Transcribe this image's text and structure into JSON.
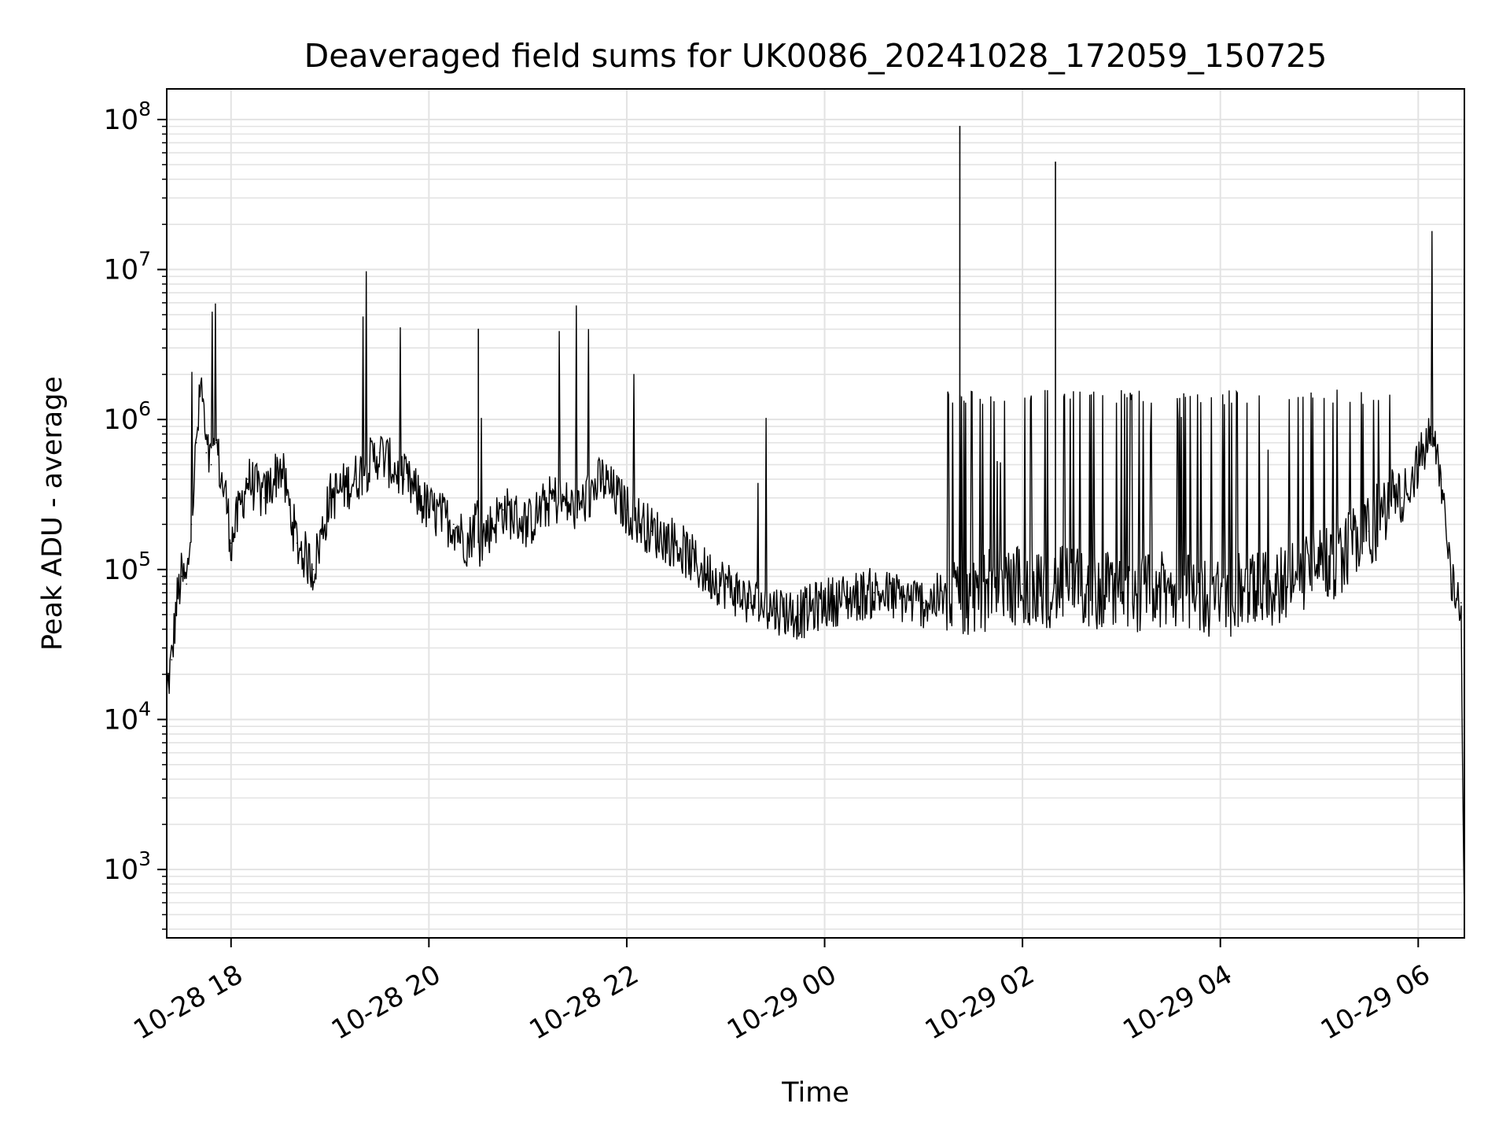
{
  "chart_data": {
    "type": "line",
    "title": "Deaveraged field sums for UK0086_20241028_172059_150725",
    "xlabel": "Time",
    "ylabel": "Peak ADU - average",
    "yscale": "log",
    "ylim": [
      350,
      160000000
    ],
    "xlim": [
      "2024-10-28 17:21",
      "2024-10-29 06:28"
    ],
    "grid": "on (major and minor, both axes)",
    "line_color": "#000000",
    "x_ticks": [
      {
        "value": "2024-10-28 18:00",
        "label": "10-28 18"
      },
      {
        "value": "2024-10-28 20:00",
        "label": "10-28 20"
      },
      {
        "value": "2024-10-28 22:00",
        "label": "10-28 22"
      },
      {
        "value": "2024-10-29 00:00",
        "label": "10-29 00"
      },
      {
        "value": "2024-10-29 02:00",
        "label": "10-29 02"
      },
      {
        "value": "2024-10-29 04:00",
        "label": "10-29 04"
      },
      {
        "value": "2024-10-29 06:00",
        "label": "10-29 06"
      }
    ],
    "y_ticks": [
      {
        "value": 1000,
        "base": "10",
        "exp": "3"
      },
      {
        "value": 10000,
        "base": "10",
        "exp": "4"
      },
      {
        "value": 100000,
        "base": "10",
        "exp": "5"
      },
      {
        "value": 1000000,
        "base": "10",
        "exp": "6"
      },
      {
        "value": 10000000,
        "base": "10",
        "exp": "7"
      },
      {
        "value": 100000000,
        "base": "10",
        "exp": "8"
      }
    ],
    "series": [
      {
        "x": [
          "2024-10-28 17:21",
          "2024-10-28 17:24",
          "2024-10-28 17:27",
          "2024-10-28 17:30",
          "2024-10-28 17:33",
          "2024-10-28 17:36",
          "2024-10-28 17:39",
          "2024-10-28 17:42",
          "2024-10-28 17:45",
          "2024-10-28 17:48",
          "2024-10-28 17:51",
          "2024-10-28 17:54",
          "2024-10-28 17:57",
          "2024-10-28 18:00",
          "2024-10-28 18:10",
          "2024-10-28 18:20",
          "2024-10-28 18:30",
          "2024-10-28 18:40",
          "2024-10-28 18:50",
          "2024-10-28 19:00",
          "2024-10-28 19:15",
          "2024-10-28 19:30",
          "2024-10-28 19:45",
          "2024-10-28 20:00",
          "2024-10-28 20:15",
          "2024-10-28 20:24",
          "2024-10-28 20:30",
          "2024-10-28 20:45",
          "2024-10-28 21:00",
          "2024-10-28 21:15",
          "2024-10-28 21:30",
          "2024-10-28 21:45",
          "2024-10-28 22:00",
          "2024-10-28 22:15",
          "2024-10-28 22:30",
          "2024-10-28 22:45",
          "2024-10-28 23:00",
          "2024-10-28 23:15",
          "2024-10-28 23:30",
          "2024-10-28 23:45",
          "2024-10-29 00:00",
          "2024-10-29 00:30",
          "2024-10-29 01:00",
          "2024-10-29 01:22",
          "2024-10-29 01:30",
          "2024-10-29 02:00",
          "2024-10-29 02:20",
          "2024-10-29 02:30",
          "2024-10-29 03:00",
          "2024-10-29 03:30",
          "2024-10-29 04:00",
          "2024-10-29 04:30",
          "2024-10-29 05:00",
          "2024-10-29 05:30",
          "2024-10-29 05:50",
          "2024-10-29 06:00",
          "2024-10-29 06:08",
          "2024-10-29 06:14",
          "2024-10-29 06:20",
          "2024-10-29 06:26",
          "2024-10-29 06:28"
        ],
        "y": [
          15000,
          25000,
          60000,
          90000,
          80000,
          200000,
          700000,
          1800000,
          600000,
          500000,
          700000,
          400000,
          300000,
          150000,
          400000,
          300000,
          500000,
          150000,
          100000,
          300000,
          400000,
          600000,
          400000,
          250000,
          200000,
          150000,
          4000000,
          250000,
          200000,
          300000,
          250000,
          400000,
          250000,
          180000,
          150000,
          100000,
          80000,
          60000,
          55000,
          50000,
          60000,
          70000,
          60000,
          90000000,
          70000,
          80000,
          52000000,
          75000,
          70000,
          70000,
          65000,
          75000,
          100000,
          180000,
          300000,
          500000,
          800000,
          400000,
          80000,
          60000,
          500
        ]
      }
    ]
  }
}
